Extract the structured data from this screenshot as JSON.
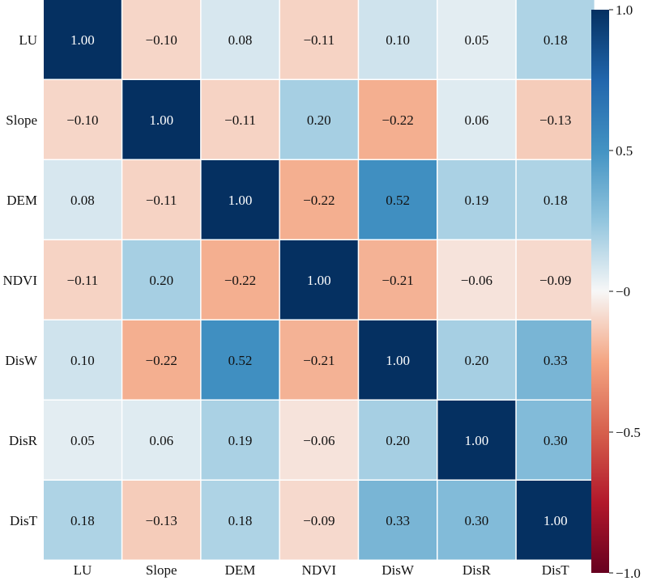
{
  "chart_data": {
    "type": "heatmap",
    "title": "",
    "xlabel": "",
    "ylabel": "",
    "rows": [
      "LU",
      "Slope",
      "DEM",
      "NDVI",
      "DisW",
      "DisR",
      "DisT"
    ],
    "cols": [
      "LU",
      "Slope",
      "DEM",
      "NDVI",
      "DisW",
      "DisR",
      "DisT"
    ],
    "values": [
      [
        1.0,
        -0.1,
        0.08,
        -0.11,
        0.1,
        0.05,
        0.18
      ],
      [
        -0.1,
        1.0,
        -0.11,
        0.2,
        -0.22,
        0.06,
        -0.13
      ],
      [
        0.08,
        -0.11,
        1.0,
        -0.22,
        0.52,
        0.19,
        0.18
      ],
      [
        -0.11,
        0.2,
        -0.22,
        1.0,
        -0.21,
        -0.06,
        -0.09
      ],
      [
        0.1,
        -0.22,
        0.52,
        -0.21,
        1.0,
        0.2,
        0.33
      ],
      [
        0.05,
        0.06,
        0.19,
        -0.06,
        0.2,
        1.0,
        0.3
      ],
      [
        0.18,
        -0.13,
        0.18,
        -0.09,
        0.33,
        0.3,
        1.0
      ]
    ],
    "value_labels": [
      [
        "1.00",
        "−0.10",
        "0.08",
        "−0.11",
        "0.10",
        "0.05",
        "0.18"
      ],
      [
        "−0.10",
        "1.00",
        "−0.11",
        "0.20",
        "−0.22",
        "0.06",
        "−0.13"
      ],
      [
        "0.08",
        "−0.11",
        "1.00",
        "−0.22",
        "0.52",
        "0.19",
        "0.18"
      ],
      [
        "−0.11",
        "0.20",
        "−0.22",
        "1.00",
        "−0.21",
        "−0.06",
        "−0.09"
      ],
      [
        "0.10",
        "−0.22",
        "0.52",
        "−0.21",
        "1.00",
        "0.20",
        "0.33"
      ],
      [
        "0.05",
        "0.06",
        "0.19",
        "−0.06",
        "0.20",
        "1.00",
        "0.30"
      ],
      [
        "0.18",
        "−0.13",
        "0.18",
        "−0.09",
        "0.33",
        "0.30",
        "1.00"
      ]
    ],
    "colorbar": {
      "range": [
        -1.0,
        1.0
      ],
      "ticks": [
        1.0,
        0.5,
        0,
        -0.5,
        -1.0
      ],
      "tick_labels": [
        "1.0",
        "0.5",
        "−0",
        "−0.5",
        "−1.0"
      ],
      "colormap": "RdBu"
    },
    "grid": true
  }
}
